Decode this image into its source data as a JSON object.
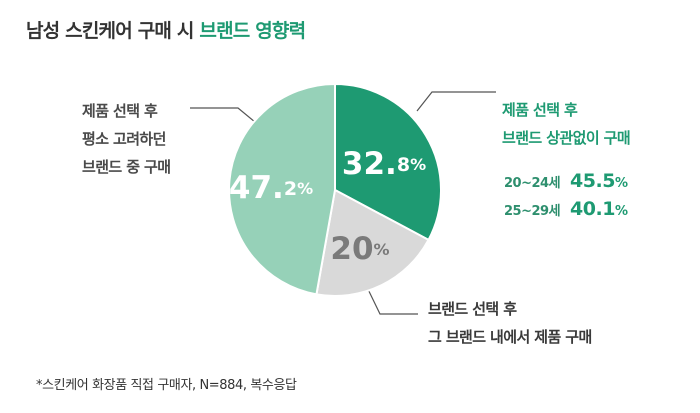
{
  "title": {
    "prefix": "남성 스킨케어 구매 시 ",
    "highlight": "브랜드 영향력",
    "highlight_color": "#1e9a72"
  },
  "chart_data": {
    "type": "pie",
    "slices": [
      {
        "value": 32.8,
        "display_num": "32.",
        "display_dec": "8",
        "display_pct": "%",
        "label_lines": [
          "제품 선택 후",
          "브랜드 상관없이 구매"
        ],
        "color": "#1e9a72",
        "text_color": "#ffffff"
      },
      {
        "value": 20,
        "display_num": "20",
        "display_dec": "",
        "display_pct": "%",
        "label_lines": [
          "브랜드 선택 후",
          "그 브랜드 내에서 제품 구매"
        ],
        "color": "#d9d9d9",
        "text_color": "#7a7a7a"
      },
      {
        "value": 47.2,
        "display_num": "47.",
        "display_dec": "2",
        "display_pct": "%",
        "label_lines": [
          "제품 선택 후",
          "평소 고려하던",
          "브랜드 중 구매"
        ],
        "color": "#96d1b8",
        "text_color": "#ffffff"
      }
    ],
    "sub_breakdown": [
      {
        "age": "20~24세",
        "num": "45.5",
        "unit": "%"
      },
      {
        "age": "25~29세",
        "num": "40.1",
        "unit": "%"
      }
    ]
  },
  "footnote": "*스킨케어 화장품 직접 구매자, N=884, 복수응답"
}
